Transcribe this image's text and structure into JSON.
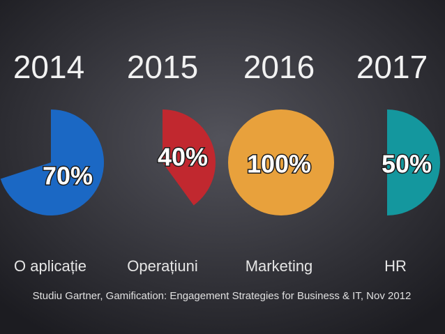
{
  "chart_data": [
    {
      "type": "pie",
      "title": "2014",
      "categories": [
        "O aplicație"
      ],
      "values": [
        70
      ],
      "value_labels": [
        "70%"
      ],
      "color": "#1b68c4"
    },
    {
      "type": "pie",
      "title": "2015",
      "categories": [
        "Operațiuni"
      ],
      "values": [
        40
      ],
      "value_labels": [
        "40%"
      ],
      "color": "#c1282f"
    },
    {
      "type": "pie",
      "title": "2016",
      "categories": [
        "Marketing"
      ],
      "values": [
        100
      ],
      "value_labels": [
        "100%"
      ],
      "color": "#e8a13c"
    },
    {
      "type": "pie",
      "title": "2017",
      "categories": [
        "HR"
      ],
      "values": [
        50
      ],
      "value_labels": [
        "50%"
      ],
      "color": "#14979e"
    }
  ],
  "source": "Studiu Gartner, Gamification: Engagement Strategies for Business & IT, Nov 2012"
}
